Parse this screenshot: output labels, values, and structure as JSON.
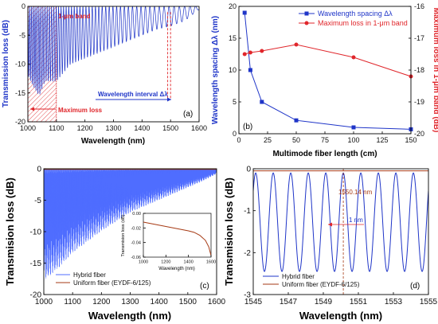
{
  "colors": {
    "blue": "#1f35c8",
    "red": "#e0262b",
    "brown": "#a63a14",
    "light_blue": "#4f6dff"
  },
  "chart_data": [
    {
      "id": "a",
      "type": "line",
      "panel_label": "(a)",
      "xlabel": "Wavelength (nm)",
      "ylabel": "Transmission loss (dB)",
      "xlim": [
        1000,
        1600
      ],
      "ylim": [
        -20,
        0
      ],
      "xticks": [
        1000,
        1100,
        1200,
        1300,
        1400,
        1500,
        1600
      ],
      "yticks": [
        0,
        -5,
        -10,
        -15,
        -20
      ],
      "annotations": {
        "band": "1-μm band",
        "interval": "Wavelength interval Δλ",
        "max_loss": "Maximum loss"
      },
      "band_range": [
        1000,
        1100
      ],
      "interval_marks": [
        1490,
        1500
      ],
      "series": [
        {
          "kind": "oscillation",
          "color": "#1f35c8",
          "period_start": 6,
          "period_end": 20,
          "depth_points": [
            [
              1000,
              -12
            ],
            [
              1020,
              -14
            ],
            [
              1040,
              -15.5
            ],
            [
              1060,
              -13
            ],
            [
              1100,
              -13
            ],
            [
              1150,
              -10
            ],
            [
              1200,
              -9
            ],
            [
              1250,
              -8
            ],
            [
              1300,
              -7
            ],
            [
              1350,
              -6
            ],
            [
              1400,
              -5
            ],
            [
              1450,
              -4
            ],
            [
              1500,
              -3.4
            ],
            [
              1550,
              -2.5
            ],
            [
              1600,
              -0.5
            ]
          ]
        }
      ]
    },
    {
      "id": "b",
      "type": "line",
      "panel_label": "(b)",
      "xlabel": "Multimode fiber length (cm)",
      "ylabel_left": "Wavelength spacing Δλ (nm)",
      "ylabel_right": "Maximum loss in 1-μm band (dB)",
      "xlim": [
        0,
        150
      ],
      "ylim_left": [
        0,
        20
      ],
      "ylim_right": [
        -20,
        -16
      ],
      "xticks": [
        0,
        25,
        50,
        75,
        100,
        125,
        150
      ],
      "yticks_left": [
        0,
        5,
        10,
        15,
        20
      ],
      "yticks_right": [
        -16,
        -17,
        -18,
        -19,
        -20
      ],
      "series": [
        {
          "name": "Wavelength spacing Δλ",
          "axis": "left",
          "color": "#1f35c8",
          "marker": "square",
          "x": [
            5,
            10,
            20,
            50,
            100,
            150
          ],
          "y": [
            19,
            10,
            5,
            2.1,
            1.0,
            0.7
          ]
        },
        {
          "name": "Maximum loss in 1-μm band",
          "axis": "right",
          "color": "#e0262b",
          "marker": "circle",
          "x": [
            5,
            10,
            20,
            50,
            100,
            150
          ],
          "y": [
            -17.5,
            -17.45,
            -17.4,
            -17.2,
            -17.6,
            -18.2
          ]
        }
      ]
    },
    {
      "id": "c",
      "type": "line",
      "panel_label": "(c)",
      "xlabel": "Wavelength (nm)",
      "ylabel": "Transmision loss (dB)",
      "xlim": [
        1000,
        1600
      ],
      "ylim": [
        -20,
        0
      ],
      "xticks": [
        1000,
        1100,
        1200,
        1300,
        1400,
        1500,
        1600
      ],
      "yticks": [
        0,
        -5,
        -10,
        -15,
        -20
      ],
      "series": [
        {
          "name": "Hybrid fiber",
          "color": "#4f6dff",
          "kind": "dense-oscillation"
        },
        {
          "name": "Uniform fiber (EYDF-6/125)",
          "color": "#a63a14",
          "kind": "flat",
          "y": -0.1
        }
      ],
      "inset": {
        "ylabel": "Transmision loss (dB)",
        "xlabel": "Wavelength (nm)",
        "xlim": [
          1000,
          1600
        ],
        "ylim": [
          -0.06,
          0
        ],
        "xticks": [
          1000,
          1200,
          1400,
          1600
        ],
        "yticks": [
          0.0,
          -0.02,
          -0.04,
          -0.06
        ],
        "ytick_labels": [
          "0.00",
          "-0.02",
          "-0.04",
          "-0.06"
        ],
        "curve": {
          "x": [
            1000,
            1100,
            1200,
            1300,
            1400,
            1450,
            1500,
            1550,
            1580,
            1600
          ],
          "y": [
            -0.012,
            -0.015,
            -0.018,
            -0.021,
            -0.024,
            -0.026,
            -0.03,
            -0.037,
            -0.046,
            -0.058
          ]
        }
      }
    },
    {
      "id": "d",
      "type": "line",
      "panel_label": "(d)",
      "xlabel": "Wavelength (nm)",
      "ylabel": "Transmision loss (dB)",
      "xlim": [
        1545,
        1555
      ],
      "ylim": [
        -3,
        0
      ],
      "xticks": [
        1545,
        1547,
        1549,
        1551,
        1553,
        1555
      ],
      "yticks": [
        0,
        -1,
        -2,
        -3
      ],
      "annotations": {
        "marker": "1550.14 nm",
        "spacing": "1 nm"
      },
      "marker_x": 1550.14,
      "series": [
        {
          "name": "Hybrid fiber",
          "color": "#1f35c8",
          "kind": "sinusoid",
          "period": 1.0,
          "min": -2.45,
          "max": -0.1,
          "peak_at": 1550.14
        },
        {
          "name": "Uniform fiber (EYDF-6/125)",
          "color": "#a63a14",
          "kind": "flat",
          "y": -0.05
        }
      ]
    }
  ]
}
